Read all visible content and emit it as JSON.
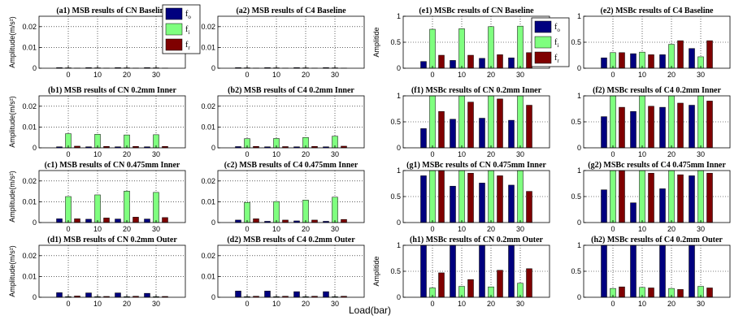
{
  "figure": {
    "xlabel": "Load(bar)"
  },
  "colors": {
    "f_o": "#00007f",
    "f_i": "#7fff7f",
    "f_r": "#7f0000"
  },
  "legend": {
    "entries": [
      "f",
      "f",
      "f"
    ],
    "subscripts": [
      "o",
      "i",
      "r"
    ]
  },
  "chart_data": [
    {
      "id": "a1",
      "type": "bar",
      "title": "(a1) MSB results of CN Baseline",
      "ylabel": "Amplitude(m/s²)",
      "categories": [
        "0",
        "10",
        "20",
        "30"
      ],
      "ylim": [
        0,
        0.025
      ],
      "yticks": [
        "0",
        "0.01",
        "0.02"
      ],
      "ytick_values": [
        0,
        0.01,
        0.02
      ],
      "grid": true,
      "series": [
        {
          "name": "f_o",
          "values": [
            0.0003,
            0.0003,
            0.0003,
            0.0003
          ]
        },
        {
          "name": "f_i",
          "values": [
            0.0002,
            0.0002,
            0.0002,
            0.0002
          ]
        },
        {
          "name": "f_r",
          "values": [
            0.0001,
            0.0001,
            0.0001,
            0.0001
          ]
        }
      ]
    },
    {
      "id": "a2",
      "type": "bar",
      "title": "(a2) MSB results of C4 Baseline",
      "ylabel": "",
      "categories": [
        "0",
        "10",
        "20",
        "30"
      ],
      "ylim": [
        0,
        0.025
      ],
      "yticks": [
        "0",
        "0.01",
        "0.02"
      ],
      "ytick_values": [
        0,
        0.01,
        0.02
      ],
      "grid": true,
      "series": [
        {
          "name": "f_o",
          "values": [
            0.0003,
            0.0003,
            0.0003,
            0.0003
          ]
        },
        {
          "name": "f_i",
          "values": [
            0.0002,
            0.0002,
            0.0002,
            0.0002
          ]
        },
        {
          "name": "f_r",
          "values": [
            0.0001,
            0.0001,
            0.0001,
            0.0001
          ]
        }
      ]
    },
    {
      "id": "e1",
      "type": "bar",
      "title": "(e1) MSBc results of CN Baseline",
      "ylabel": "Amplitide",
      "categories": [
        "0",
        "10",
        "20",
        "30"
      ],
      "ylim": [
        0,
        1
      ],
      "yticks": [
        "0",
        "0.5",
        "1"
      ],
      "ytick_values": [
        0,
        0.5,
        1
      ],
      "grid": true,
      "series": [
        {
          "name": "f_o",
          "values": [
            0.13,
            0.15,
            0.19,
            0.2
          ]
        },
        {
          "name": "f_i",
          "values": [
            0.75,
            0.76,
            0.8,
            0.81
          ]
        },
        {
          "name": "f_r",
          "values": [
            0.25,
            0.25,
            0.26,
            0.3
          ]
        }
      ]
    },
    {
      "id": "e2",
      "type": "bar",
      "title": "(e2) MSBc results of C4 Baseline",
      "ylabel": "",
      "categories": [
        "0",
        "10",
        "20",
        "30"
      ],
      "ylim": [
        0,
        1
      ],
      "yticks": [
        "0",
        "0.5",
        "1"
      ],
      "ytick_values": [
        0,
        0.5,
        1
      ],
      "grid": true,
      "series": [
        {
          "name": "f_o",
          "values": [
            0.2,
            0.28,
            0.26,
            0.38
          ]
        },
        {
          "name": "f_i",
          "values": [
            0.3,
            0.31,
            0.46,
            0.22
          ]
        },
        {
          "name": "f_r",
          "values": [
            0.3,
            0.26,
            0.53,
            0.53
          ]
        }
      ]
    },
    {
      "id": "b1",
      "type": "bar",
      "title": "(b1) MSB results of CN 0.2mm Inner",
      "ylabel": "Amplitude(m/s²)",
      "categories": [
        "0",
        "10",
        "20",
        "30"
      ],
      "ylim": [
        0,
        0.025
      ],
      "yticks": [
        "0",
        "0.01",
        "0.02"
      ],
      "ytick_values": [
        0,
        0.01,
        0.02
      ],
      "grid": true,
      "series": [
        {
          "name": "f_o",
          "values": [
            0.0005,
            0.0005,
            0.0005,
            0.0005
          ]
        },
        {
          "name": "f_i",
          "values": [
            0.0068,
            0.0065,
            0.0062,
            0.0063
          ]
        },
        {
          "name": "f_r",
          "values": [
            0.0008,
            0.0007,
            0.0007,
            0.0007
          ]
        }
      ]
    },
    {
      "id": "b2",
      "type": "bar",
      "title": "(b2) MSB results of C4 0.2mm Inner",
      "ylabel": "",
      "categories": [
        "0",
        "10",
        "20",
        "30"
      ],
      "ylim": [
        0,
        0.025
      ],
      "yticks": [
        "0",
        "0.01",
        "0.02"
      ],
      "ytick_values": [
        0,
        0.01,
        0.02
      ],
      "grid": true,
      "series": [
        {
          "name": "f_o",
          "values": [
            0.0006,
            0.0005,
            0.0005,
            0.0005
          ]
        },
        {
          "name": "f_i",
          "values": [
            0.0044,
            0.0045,
            0.005,
            0.0056
          ]
        },
        {
          "name": "f_r",
          "values": [
            0.0007,
            0.0006,
            0.0007,
            0.0008
          ]
        }
      ]
    },
    {
      "id": "f1",
      "type": "bar",
      "title": "(f1) MSBc results of CN 0.2mm Inner",
      "ylabel": "",
      "categories": [
        "0",
        "10",
        "20",
        "30"
      ],
      "ylim": [
        0,
        1
      ],
      "yticks": [
        "0",
        "0.5",
        "1"
      ],
      "ytick_values": [
        0,
        0.5,
        1
      ],
      "grid": true,
      "series": [
        {
          "name": "f_o",
          "values": [
            0.37,
            0.55,
            0.57,
            0.53
          ]
        },
        {
          "name": "f_i",
          "values": [
            1,
            1,
            1,
            1
          ]
        },
        {
          "name": "f_r",
          "values": [
            0.7,
            0.88,
            0.94,
            0.82
          ]
        }
      ]
    },
    {
      "id": "f2",
      "type": "bar",
      "title": "(f2) MSBc results of C4 0.2mm Inner",
      "ylabel": "",
      "categories": [
        "0",
        "10",
        "20",
        "30"
      ],
      "ylim": [
        0,
        1
      ],
      "yticks": [
        "0",
        "0.5",
        "1"
      ],
      "ytick_values": [
        0,
        0.5,
        1
      ],
      "grid": true,
      "series": [
        {
          "name": "f_o",
          "values": [
            0.6,
            0.7,
            0.78,
            0.82
          ]
        },
        {
          "name": "f_i",
          "values": [
            1,
            1,
            1,
            1
          ]
        },
        {
          "name": "f_r",
          "values": [
            0.78,
            0.8,
            0.86,
            0.9
          ]
        }
      ]
    },
    {
      "id": "c1",
      "type": "bar",
      "title": "(c1) MSB results of CN 0.475mm Inner",
      "ylabel": "Amplitude(m/s²)",
      "categories": [
        "0",
        "10",
        "20",
        "30"
      ],
      "ylim": [
        0,
        0.025
      ],
      "yticks": [
        "0",
        "0.01",
        "0.02"
      ],
      "ytick_values": [
        0,
        0.01,
        0.02
      ],
      "grid": true,
      "series": [
        {
          "name": "f_o",
          "values": [
            0.0018,
            0.0016,
            0.0017,
            0.0017
          ]
        },
        {
          "name": "f_i",
          "values": [
            0.0125,
            0.0133,
            0.0151,
            0.0145
          ]
        },
        {
          "name": "f_r",
          "values": [
            0.0018,
            0.0022,
            0.0026,
            0.0024
          ]
        }
      ]
    },
    {
      "id": "c2",
      "type": "bar",
      "title": "(c2) MSB results of C4 0.475mm Inner",
      "ylabel": "",
      "categories": [
        "0",
        "10",
        "20",
        "30"
      ],
      "ylim": [
        0,
        0.025
      ],
      "yticks": [
        "0",
        "0.01",
        "0.02"
      ],
      "ytick_values": [
        0,
        0.01,
        0.02
      ],
      "grid": true,
      "series": [
        {
          "name": "f_o",
          "values": [
            0.0012,
            0.0006,
            0.0008,
            0.0006
          ]
        },
        {
          "name": "f_i",
          "values": [
            0.0097,
            0.0101,
            0.0108,
            0.0122
          ]
        },
        {
          "name": "f_r",
          "values": [
            0.0018,
            0.0012,
            0.0012,
            0.0015
          ]
        }
      ]
    },
    {
      "id": "g1",
      "type": "bar",
      "title": "(g1) MSBc results of CN 0.475mm Inner",
      "ylabel": "",
      "categories": [
        "0",
        "10",
        "20",
        "30"
      ],
      "ylim": [
        0,
        1
      ],
      "yticks": [
        "0",
        "0.5",
        "1"
      ],
      "ytick_values": [
        0,
        0.5,
        1
      ],
      "grid": true,
      "series": [
        {
          "name": "f_o",
          "values": [
            0.9,
            0.7,
            0.76,
            0.72
          ]
        },
        {
          "name": "f_i",
          "values": [
            1,
            1,
            1,
            1
          ]
        },
        {
          "name": "f_r",
          "values": [
            1,
            0.95,
            0.9,
            0.6
          ]
        }
      ]
    },
    {
      "id": "g2",
      "type": "bar",
      "title": "(g2) MSBc results of C4 0.475mm Inner",
      "ylabel": "",
      "categories": [
        "0",
        "10",
        "20",
        "30"
      ],
      "ylim": [
        0,
        1
      ],
      "yticks": [
        "0",
        "0.5",
        "1"
      ],
      "ytick_values": [
        0,
        0.5,
        1
      ],
      "grid": true,
      "series": [
        {
          "name": "f_o",
          "values": [
            0.63,
            0.38,
            0.65,
            0.9
          ]
        },
        {
          "name": "f_i",
          "values": [
            1,
            1,
            1,
            1
          ]
        },
        {
          "name": "f_r",
          "values": [
            1,
            0.95,
            0.92,
            0.95
          ]
        }
      ]
    },
    {
      "id": "d1",
      "type": "bar",
      "title": "(d1) MSB results of CN 0.2mm Outer",
      "ylabel": "Amplitude(m/s²)",
      "categories": [
        "0",
        "10",
        "20",
        "30"
      ],
      "ylim": [
        0,
        0.025
      ],
      "yticks": [
        "0",
        "0.01",
        "0.02"
      ],
      "ytick_values": [
        0,
        0.01,
        0.02
      ],
      "grid": true,
      "series": [
        {
          "name": "f_o",
          "values": [
            0.0022,
            0.0021,
            0.0021,
            0.0019
          ]
        },
        {
          "name": "f_i",
          "values": [
            0.0003,
            0.0003,
            0.0003,
            0.0003
          ]
        },
        {
          "name": "f_r",
          "values": [
            0.0006,
            0.0004,
            0.0005,
            0.0004
          ]
        }
      ]
    },
    {
      "id": "d2",
      "type": "bar",
      "title": "(d2) MSB results of C4 0.2mm Outer",
      "ylabel": "",
      "categories": [
        "0",
        "10",
        "20",
        "30"
      ],
      "ylim": [
        0,
        0.025
      ],
      "yticks": [
        "0",
        "0.01",
        "0.02"
      ],
      "ytick_values": [
        0,
        0.01,
        0.02
      ],
      "grid": true,
      "series": [
        {
          "name": "f_o",
          "values": [
            0.003,
            0.003,
            0.0027,
            0.0027
          ]
        },
        {
          "name": "f_i",
          "values": [
            0.0003,
            0.0003,
            0.0003,
            0.0003
          ]
        },
        {
          "name": "f_r",
          "values": [
            0.0005,
            0.0005,
            0.0005,
            0.0005
          ]
        }
      ]
    },
    {
      "id": "h1",
      "type": "bar",
      "title": "(h1) MSBc results of CN 0.2mm Outer",
      "ylabel": "Amplitide",
      "categories": [
        "0",
        "10",
        "20",
        "30"
      ],
      "ylim": [
        0,
        1
      ],
      "yticks": [
        "0",
        "0.5",
        "1"
      ],
      "ytick_values": [
        0,
        0.5,
        1
      ],
      "grid": true,
      "series": [
        {
          "name": "f_o",
          "values": [
            1,
            1,
            1,
            1
          ]
        },
        {
          "name": "f_i",
          "values": [
            0.18,
            0.21,
            0.2,
            0.27
          ]
        },
        {
          "name": "f_r",
          "values": [
            0.47,
            0.34,
            0.52,
            0.55
          ]
        }
      ]
    },
    {
      "id": "h2",
      "type": "bar",
      "title": "(h2) MSBc results of C4 0.2mm Outer",
      "ylabel": "",
      "categories": [
        "0",
        "10",
        "20",
        "30"
      ],
      "ylim": [
        0,
        1
      ],
      "yticks": [
        "0",
        "0.5",
        "1"
      ],
      "ytick_values": [
        0,
        0.5,
        1
      ],
      "grid": true,
      "series": [
        {
          "name": "f_o",
          "values": [
            1,
            1,
            1,
            1
          ]
        },
        {
          "name": "f_i",
          "values": [
            0.17,
            0.19,
            0.17,
            0.21
          ]
        },
        {
          "name": "f_r",
          "values": [
            0.2,
            0.18,
            0.15,
            0.18
          ]
        }
      ]
    }
  ]
}
